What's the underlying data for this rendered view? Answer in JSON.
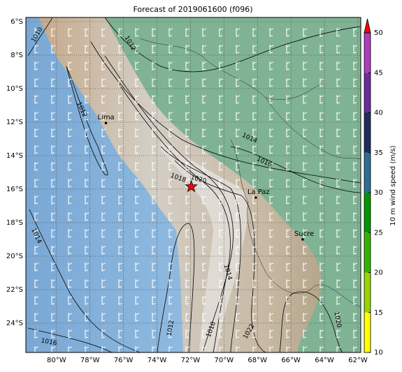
{
  "title": "Forecast of 2019061600 (f096)",
  "map": {
    "lon_ticks": [
      {
        "value": -80,
        "label": "80°W"
      },
      {
        "value": -78,
        "label": "78°W"
      },
      {
        "value": -76,
        "label": "76°W"
      },
      {
        "value": -74,
        "label": "74°W"
      },
      {
        "value": -72,
        "label": "72°W"
      },
      {
        "value": -70,
        "label": "70°W"
      },
      {
        "value": -68,
        "label": "68°W"
      },
      {
        "value": -66,
        "label": "66°W"
      },
      {
        "value": -64,
        "label": "64°W"
      },
      {
        "value": -62,
        "label": "62°W"
      }
    ],
    "lat_ticks": [
      {
        "value": -6,
        "label": "6°S"
      },
      {
        "value": -8,
        "label": "8°S"
      },
      {
        "value": -10,
        "label": "10°S"
      },
      {
        "value": -12,
        "label": "12°S"
      },
      {
        "value": -14,
        "label": "14°S"
      },
      {
        "value": -16,
        "label": "16°S"
      },
      {
        "value": -18,
        "label": "18°S"
      },
      {
        "value": -20,
        "label": "20°S"
      },
      {
        "value": -22,
        "label": "22°S"
      },
      {
        "value": -24,
        "label": "24°S"
      }
    ],
    "lonlim": [
      -81.83,
      -61.83
    ],
    "latlim": [
      -5.75,
      -25.75
    ],
    "cities": [
      {
        "name": "Lima",
        "lon": -77.05,
        "lat": -12.05
      },
      {
        "name": "La Paz",
        "lon": -68.1,
        "lat": -16.5
      },
      {
        "name": "Sucre",
        "lon": -65.3,
        "lat": -19.0
      }
    ],
    "star": {
      "lon": -71.95,
      "lat": -15.85
    },
    "contour_labels": [
      "1010",
      "1012",
      "1012",
      "1014",
      "1016",
      "1018",
      "1020",
      "1014",
      "1014",
      "1012",
      "1010",
      "1022",
      "1020",
      "1016"
    ]
  },
  "colorbar": {
    "label": "10 m wind speed (m/s)",
    "lim": [
      10,
      50
    ],
    "ticks": [
      10,
      15,
      20,
      25,
      30,
      35,
      40,
      45,
      50
    ],
    "colors": [
      "#ffff00",
      "#99d500",
      "#33b400",
      "#009600",
      "#2c6e96",
      "#1f2d5c",
      "#6a2c9e",
      "#b03cc0"
    ],
    "extend_color": "#ff0000"
  }
}
